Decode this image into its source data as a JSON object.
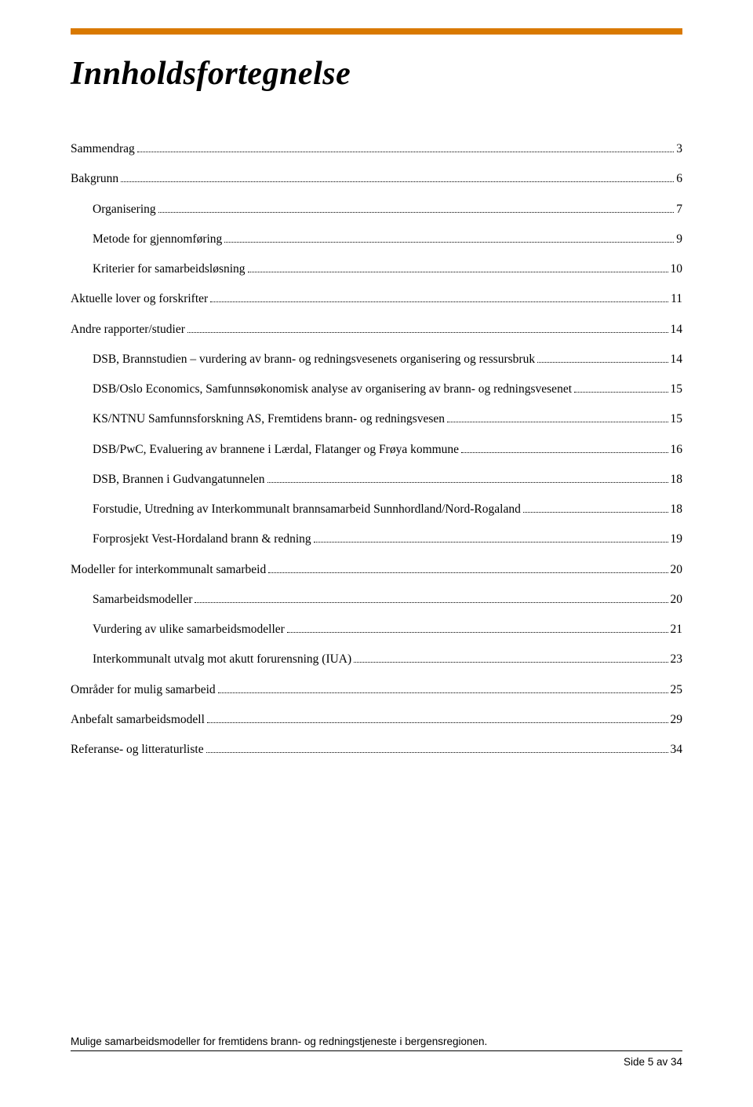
{
  "title": "Innholdsfortegnelse",
  "toc": [
    {
      "level": 1,
      "label": "Sammendrag",
      "page": "3"
    },
    {
      "level": 1,
      "label": "Bakgrunn",
      "page": "6"
    },
    {
      "level": 2,
      "label": "Organisering",
      "page": "7"
    },
    {
      "level": 2,
      "label": "Metode for gjennomføring",
      "page": "9"
    },
    {
      "level": 2,
      "label": "Kriterier for samarbeidsløsning",
      "page": "10"
    },
    {
      "level": 1,
      "label": "Aktuelle lover og forskrifter",
      "page": "11"
    },
    {
      "level": 1,
      "label": "Andre rapporter/studier",
      "page": "14"
    },
    {
      "level": 2,
      "label": "DSB, Brannstudien – vurdering av brann- og redningsvesenets organisering og ressursbruk",
      "page": "14"
    },
    {
      "level": 2,
      "label": "DSB/Oslo Economics, Samfunnsøkonomisk analyse av organisering av brann- og redningsvesenet",
      "page": "15"
    },
    {
      "level": 2,
      "label": "KS/NTNU Samfunnsforskning AS, Fremtidens brann- og redningsvesen",
      "page": "15"
    },
    {
      "level": 2,
      "label": "DSB/PwC, Evaluering av brannene i Lærdal, Flatanger og Frøya kommune",
      "page": "16"
    },
    {
      "level": 2,
      "label": "DSB, Brannen i Gudvangatunnelen",
      "page": "18"
    },
    {
      "level": 2,
      "label": "Forstudie, Utredning av Interkommunalt brannsamarbeid Sunnhordland/Nord-Rogaland",
      "page": "18"
    },
    {
      "level": 2,
      "label": "Forprosjekt Vest-Hordaland brann & redning",
      "page": "19"
    },
    {
      "level": 1,
      "label": "Modeller for interkommunalt samarbeid",
      "page": "20"
    },
    {
      "level": 2,
      "label": "Samarbeidsmodeller",
      "page": "20"
    },
    {
      "level": 2,
      "label": "Vurdering av ulike samarbeidsmodeller",
      "page": "21"
    },
    {
      "level": 2,
      "label": "Interkommunalt utvalg mot akutt forurensning (IUA)",
      "page": "23"
    },
    {
      "level": 1,
      "label": "Områder for mulig samarbeid",
      "page": "25"
    },
    {
      "level": 1,
      "label": "Anbefalt samarbeidsmodell",
      "page": "29"
    },
    {
      "level": 1,
      "label": "Referanse- og litteraturliste",
      "page": "34"
    }
  ],
  "footer": {
    "text": "Mulige samarbeidsmodeller for fremtidens brann- og redningstjeneste i bergensregionen.",
    "page_label": "Side 5 av 34"
  },
  "colors": {
    "accent": "#d97900",
    "text": "#000000",
    "background": "#ffffff"
  }
}
